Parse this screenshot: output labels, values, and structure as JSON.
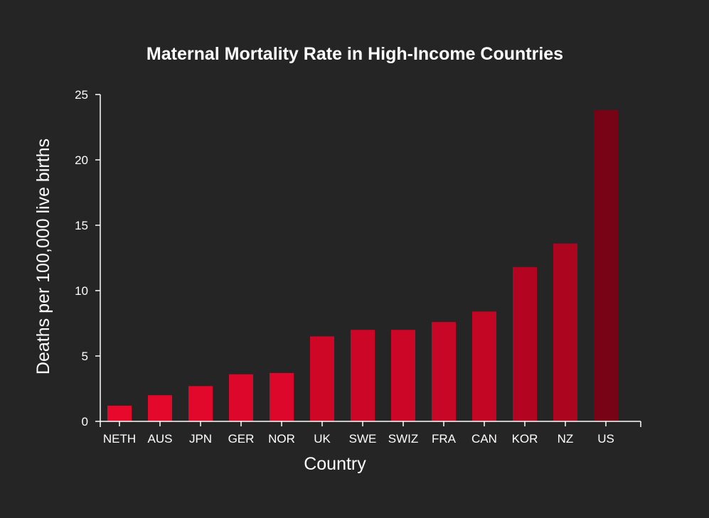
{
  "chart_data": {
    "type": "bar",
    "title": "Maternal Mortality Rate in High-Income Countries",
    "xlabel": "Country",
    "ylabel": "Deaths per 100,000 live births",
    "ylim": [
      0,
      25
    ],
    "yticks": [
      0,
      5,
      10,
      15,
      20,
      25
    ],
    "grid": false,
    "legend": "none",
    "categories": [
      "NETH",
      "AUS",
      "JPN",
      "GER",
      "NOR",
      "UK",
      "SWE",
      "SWIZ",
      "FRA",
      "CAN",
      "KOR",
      "NZ",
      "US"
    ],
    "values": [
      1.2,
      2.0,
      2.7,
      3.6,
      3.7,
      6.5,
      7.0,
      7.0,
      7.6,
      8.4,
      11.8,
      13.6,
      23.8
    ],
    "color_scale": [
      "#e8082c",
      "#780216"
    ]
  }
}
